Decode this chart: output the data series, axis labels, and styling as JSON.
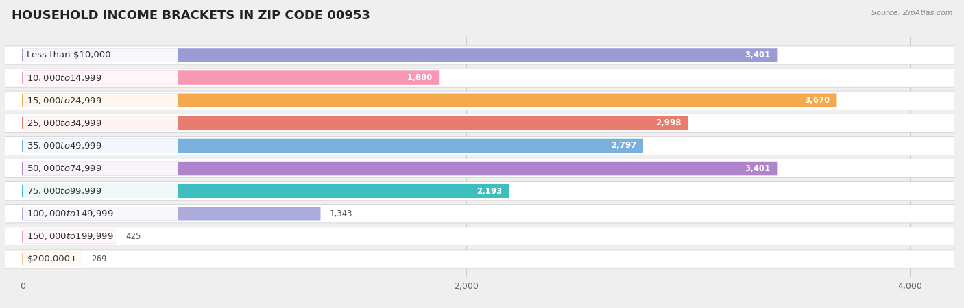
{
  "title": "HOUSEHOLD INCOME BRACKETS IN ZIP CODE 00953",
  "source": "Source: ZipAtlas.com",
  "categories": [
    "Less than $10,000",
    "$10,000 to $14,999",
    "$15,000 to $24,999",
    "$25,000 to $34,999",
    "$35,000 to $49,999",
    "$50,000 to $74,999",
    "$75,000 to $99,999",
    "$100,000 to $149,999",
    "$150,000 to $199,999",
    "$200,000+"
  ],
  "values": [
    3401,
    1880,
    3670,
    2998,
    2797,
    3401,
    2193,
    1343,
    425,
    269
  ],
  "colors": [
    "#9b9bd6",
    "#f799b4",
    "#f5a84e",
    "#e87c6e",
    "#79b0dc",
    "#b084cc",
    "#3dbfc0",
    "#ababdc",
    "#f799b4",
    "#f8c898"
  ],
  "xlim_min": -80,
  "xlim_max": 4200,
  "xticks": [
    0,
    2000,
    4000
  ],
  "background_color": "#efefef",
  "row_bg_color": "#ffffff",
  "bar_bg_color": "#e0e0e8",
  "title_fontsize": 13,
  "label_fontsize": 9.5,
  "value_fontsize": 8.5,
  "value_inside_color": "#ffffff",
  "value_outside_color": "#555555",
  "label_text_color": "#333333",
  "value_inside_threshold": 1700
}
